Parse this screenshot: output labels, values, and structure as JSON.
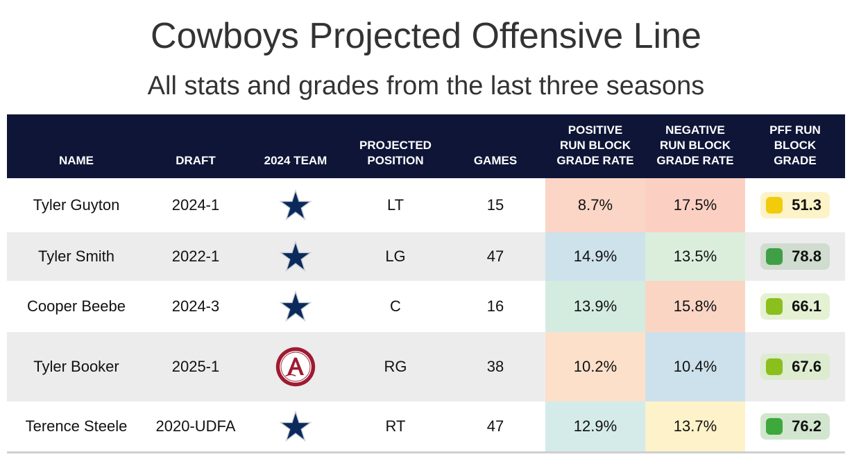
{
  "title": "Cowboys Projected Offensive Line",
  "subtitle": "All stats and grades from the last three seasons",
  "headers": {
    "name": "NAME",
    "draft": "DRAFT",
    "team": "2024 TEAM",
    "position_line1": "PROJECTED",
    "position_line2": "POSITION",
    "games": "GAMES",
    "pos_line1": "POSITIVE",
    "pos_line2": "RUN BLOCK",
    "pos_line3": "GRADE RATE",
    "neg_line1": "NEGATIVE",
    "neg_line2": "RUN BLOCK",
    "neg_line3": "GRADE RATE",
    "pff_line1": "PFF RUN",
    "pff_line2": "BLOCK",
    "pff_line3": "GRADE"
  },
  "rows": [
    {
      "name": "Tyler Guyton",
      "draft": "2024-1",
      "team_icon": "cowboys-star-icon",
      "position": "LT",
      "games": "15",
      "positive_rate": "8.7%",
      "negative_rate": "17.5%",
      "pff_grade": "51.3",
      "positive_bg": "#fbd5c6",
      "negative_bg": "#fbd0c3",
      "pill_bg": "#fdf3c9",
      "pill_color": "#f2cc0c"
    },
    {
      "name": "Tyler Smith",
      "draft": "2022-1",
      "team_icon": "cowboys-star-icon",
      "position": "LG",
      "games": "47",
      "positive_rate": "14.9%",
      "negative_rate": "13.5%",
      "pff_grade": "78.8",
      "positive_bg": "#cde2eb",
      "negative_bg": "#dbeedc",
      "pill_bg": "#cfdccf",
      "pill_color": "#3f9f45"
    },
    {
      "name": "Cooper Beebe",
      "draft": "2024-3",
      "team_icon": "cowboys-star-icon",
      "position": "C",
      "games": "16",
      "positive_rate": "13.9%",
      "negative_rate": "15.8%",
      "pff_grade": "66.1",
      "positive_bg": "#d4ebe0",
      "negative_bg": "#fbd5c4",
      "pill_bg": "#e5f1d3",
      "pill_color": "#8abf1e"
    },
    {
      "name": "Tyler Booker",
      "draft": "2025-1",
      "team_icon": "alabama-logo-icon",
      "position": "RG",
      "games": "38",
      "positive_rate": "10.2%",
      "negative_rate": "10.4%",
      "pff_grade": "67.6",
      "positive_bg": "#fce0ca",
      "negative_bg": "#cde1ec",
      "pill_bg": "#ddebcf",
      "pill_color": "#8abf1e"
    },
    {
      "name": "Terence Steele",
      "draft": "2020-UDFA",
      "team_icon": "cowboys-star-icon",
      "position": "RT",
      "games": "47",
      "positive_rate": "12.9%",
      "negative_rate": "13.7%",
      "pff_grade": "76.2",
      "positive_bg": "#d4ebea",
      "negative_bg": "#fdf2c9",
      "pill_bg": "#d2e6cf",
      "pill_color": "#3da83b"
    }
  ],
  "colors": {
    "header_bg": "#0e1537",
    "row_alt_bg": "#ececec",
    "cowboys_navy": "#0b2a5c",
    "alabama_crimson": "#9e1b32"
  },
  "chart_data": {
    "type": "table",
    "title": "Cowboys Projected Offensive Line",
    "subtitle": "All stats and grades from the last three seasons",
    "columns": [
      "NAME",
      "DRAFT",
      "2024 TEAM",
      "PROJECTED POSITION",
      "GAMES",
      "POSITIVE RUN BLOCK GRADE RATE",
      "NEGATIVE RUN BLOCK GRADE RATE",
      "PFF RUN BLOCK GRADE"
    ],
    "rows": [
      [
        "Tyler Guyton",
        "2024-1",
        "Cowboys",
        "LT",
        15,
        8.7,
        17.5,
        51.3
      ],
      [
        "Tyler Smith",
        "2022-1",
        "Cowboys",
        "LG",
        47,
        14.9,
        13.5,
        78.8
      ],
      [
        "Cooper Beebe",
        "2024-3",
        "Cowboys",
        "C",
        16,
        13.9,
        15.8,
        66.1
      ],
      [
        "Tyler Booker",
        "2025-1",
        "Alabama",
        "RG",
        38,
        10.2,
        10.4,
        67.6
      ],
      [
        "Terence Steele",
        "2020-UDFA",
        "Cowboys",
        "RT",
        47,
        12.9,
        13.7,
        76.2
      ]
    ]
  }
}
